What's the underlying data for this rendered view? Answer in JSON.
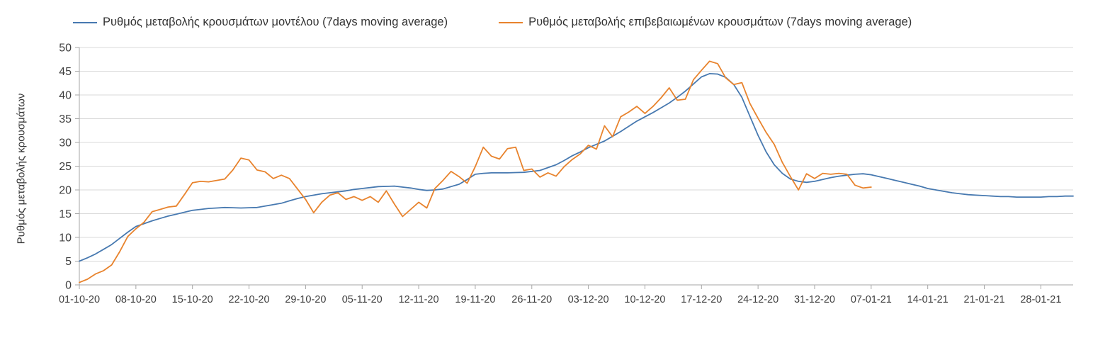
{
  "legend": {
    "items": [
      {
        "label": "Ρυθμός μεταβολής κρουσμάτων μοντέλου (7days moving average)"
      },
      {
        "label": "Ρυθμός μεταβολής επιβεβαιωμένων κρουσμάτων (7days moving average)"
      }
    ]
  },
  "chart_data": {
    "type": "line",
    "title": "",
    "xlabel": "",
    "ylabel": "Ρυθμός μεταβολής κρουσμάτων",
    "ylim": [
      0,
      50
    ],
    "ytick_step": 5,
    "ytick_labels": [
      "0",
      "5",
      "10",
      "15",
      "20",
      "25",
      "30",
      "35",
      "40",
      "45",
      "50"
    ],
    "grid": "horizontal",
    "legend_position": "top",
    "x_unit": "days since 01-10-2020, daily cadence",
    "x_max": 123,
    "x_ticks": [
      {
        "day": 0,
        "label": "01-10-20"
      },
      {
        "day": 7,
        "label": "08-10-20"
      },
      {
        "day": 14,
        "label": "15-10-20"
      },
      {
        "day": 21,
        "label": "22-10-20"
      },
      {
        "day": 28,
        "label": "29-10-20"
      },
      {
        "day": 35,
        "label": "05-11-20"
      },
      {
        "day": 42,
        "label": "12-11-20"
      },
      {
        "day": 49,
        "label": "19-11-20"
      },
      {
        "day": 56,
        "label": "26-11-20"
      },
      {
        "day": 63,
        "label": "03-12-20"
      },
      {
        "day": 70,
        "label": "10-12-20"
      },
      {
        "day": 77,
        "label": "17-12-20"
      },
      {
        "day": 84,
        "label": "24-12-20"
      },
      {
        "day": 91,
        "label": "31-12-20"
      },
      {
        "day": 98,
        "label": "07-01-21"
      },
      {
        "day": 105,
        "label": "14-01-21"
      },
      {
        "day": 112,
        "label": "21-01-21"
      },
      {
        "day": 119,
        "label": "28-01-21"
      }
    ],
    "colors": {
      "grid": "#d9d9d9",
      "axis": "#a6a6a6",
      "text": "#404040"
    },
    "series": [
      {
        "name": "Ρυθμός μεταβολής κρουσμάτων μοντέλου (7days moving average)",
        "color": "#4779B0",
        "start_day": 0,
        "values": [
          5.0,
          5.7,
          6.5,
          7.5,
          8.5,
          9.8,
          11.1,
          12.3,
          12.9,
          13.5,
          14.0,
          14.5,
          14.9,
          15.3,
          15.7,
          15.9,
          16.1,
          16.2,
          16.3,
          16.25,
          16.2,
          16.25,
          16.3,
          16.6,
          16.9,
          17.2,
          17.7,
          18.2,
          18.6,
          18.9,
          19.2,
          19.4,
          19.6,
          19.8,
          20.1,
          20.3,
          20.5,
          20.7,
          20.75,
          20.8,
          20.6,
          20.4,
          20.1,
          19.9,
          20.0,
          20.2,
          20.7,
          21.2,
          22.2,
          23.3,
          23.5,
          23.6,
          23.6,
          23.6,
          23.65,
          23.7,
          23.9,
          24.1,
          24.7,
          25.3,
          26.2,
          27.2,
          28.0,
          28.9,
          29.6,
          30.3,
          31.3,
          32.3,
          33.4,
          34.5,
          35.4,
          36.3,
          37.3,
          38.3,
          39.5,
          40.8,
          42.3,
          43.8,
          44.5,
          44.4,
          43.7,
          42.2,
          39.5,
          35.5,
          31.5,
          28.0,
          25.3,
          23.5,
          22.3,
          21.8,
          21.6,
          21.8,
          22.2,
          22.6,
          22.9,
          23.1,
          23.3,
          23.4,
          23.2,
          22.8,
          22.4,
          22.0,
          21.6,
          21.2,
          20.8,
          20.3,
          20.0,
          19.7,
          19.4,
          19.2,
          19.0,
          18.9,
          18.8,
          18.7,
          18.6,
          18.6,
          18.5,
          18.5,
          18.5,
          18.5,
          18.6,
          18.6,
          18.7,
          18.7
        ]
      },
      {
        "name": "Ρυθμός μεταβολής επιβεβαιωμένων κρουσμάτων (7days moving average)",
        "color": "#E8832D",
        "start_day": 0,
        "values": [
          0.5,
          1.2,
          2.3,
          3.0,
          4.2,
          7.0,
          10.2,
          11.8,
          13.2,
          15.4,
          15.9,
          16.4,
          16.6,
          19.0,
          21.5,
          21.8,
          21.7,
          22.0,
          22.3,
          24.2,
          26.7,
          26.3,
          24.2,
          23.8,
          22.4,
          23.1,
          22.4,
          20.2,
          18.0,
          15.2,
          17.4,
          18.9,
          19.4,
          18.0,
          18.6,
          17.8,
          18.6,
          17.4,
          19.8,
          17.0,
          14.4,
          15.9,
          17.4,
          16.2,
          20.3,
          22.0,
          23.9,
          22.8,
          21.4,
          24.9,
          29.0,
          27.1,
          26.5,
          28.7,
          29.0,
          24.1,
          24.4,
          22.7,
          23.6,
          22.9,
          24.9,
          26.4,
          27.6,
          29.4,
          28.6,
          33.5,
          31.2,
          35.4,
          36.4,
          37.6,
          36.1,
          37.6,
          39.4,
          41.5,
          38.9,
          39.1,
          43.2,
          45.2,
          47.1,
          46.6,
          43.6,
          42.2,
          42.6,
          38.2,
          35.1,
          32.1,
          29.6,
          25.8,
          22.8,
          20.0,
          23.4,
          22.4,
          23.5,
          23.3,
          23.5,
          23.3,
          21.0,
          20.4,
          20.6
        ]
      }
    ]
  }
}
